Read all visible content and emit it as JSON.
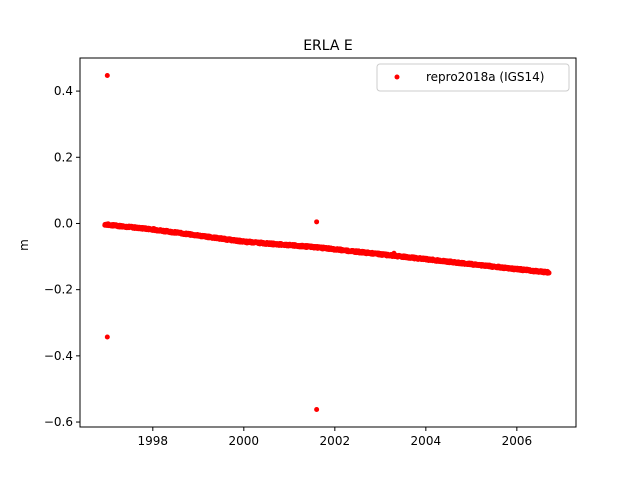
{
  "chart_data": {
    "type": "scatter",
    "title": "ERLA E",
    "xlabel": "",
    "ylabel": "m",
    "xlim": [
      1996.4,
      2007.3
    ],
    "ylim": [
      -0.615,
      0.5
    ],
    "xticks": [
      1998,
      2000,
      2002,
      2004,
      2006
    ],
    "xtick_labels": [
      "1998",
      "2000",
      "2002",
      "2004",
      "2006"
    ],
    "yticks": [
      0.4,
      0.2,
      0.0,
      -0.2,
      -0.4,
      -0.6
    ],
    "ytick_labels": [
      "0.4",
      "0.2",
      "0.0",
      "−0.2",
      "−0.4",
      "−0.6"
    ],
    "grid": false,
    "legend_position": "upper-right",
    "colors": {
      "series": "#ff0000",
      "axes": "#000000",
      "background": "#ffffff"
    },
    "series": [
      {
        "name": "repro2018a (IGS14)",
        "trend": {
          "x": [
            1996.95,
            1998.0,
            2000.0,
            2001.6,
            2004.0,
            2006.0,
            2006.7
          ],
          "y": [
            -0.003,
            -0.018,
            -0.055,
            -0.072,
            -0.108,
            -0.138,
            -0.148
          ]
        },
        "outliers": [
          {
            "x": 1997.0,
            "y": 0.447
          },
          {
            "x": 1997.0,
            "y": -0.343
          },
          {
            "x": 2001.6,
            "y": 0.005
          },
          {
            "x": 2001.6,
            "y": -0.562
          },
          {
            "x": 2003.3,
            "y": -0.09
          }
        ]
      }
    ]
  }
}
